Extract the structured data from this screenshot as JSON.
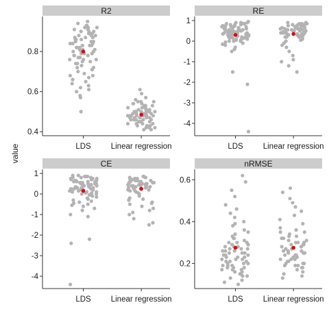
{
  "ylabel": "value",
  "colors": {
    "points": "#b3b3b3",
    "mean": "#e60000",
    "strip": "#cccccc"
  },
  "chart_data": [
    {
      "type": "scatter",
      "title": "R2",
      "ylim": [
        0.38,
        0.975
      ],
      "yticks": [
        0.4,
        0.6,
        0.8
      ],
      "categories": [
        "LDS",
        "Linear regression"
      ],
      "series": [
        {
          "category": "LDS",
          "mean": 0.8,
          "values": [
            0.95,
            0.94,
            0.93,
            0.92,
            0.92,
            0.91,
            0.91,
            0.9,
            0.9,
            0.89,
            0.89,
            0.88,
            0.88,
            0.87,
            0.87,
            0.86,
            0.86,
            0.85,
            0.85,
            0.84,
            0.84,
            0.83,
            0.83,
            0.82,
            0.82,
            0.81,
            0.81,
            0.8,
            0.8,
            0.79,
            0.79,
            0.78,
            0.78,
            0.77,
            0.77,
            0.76,
            0.76,
            0.75,
            0.75,
            0.74,
            0.73,
            0.72,
            0.71,
            0.7,
            0.69,
            0.68,
            0.67,
            0.66,
            0.65,
            0.64,
            0.63,
            0.62,
            0.61,
            0.6,
            0.58,
            0.57,
            0.5,
            0.88,
            0.86,
            0.84,
            0.82,
            0.8,
            0.78,
            0.76,
            0.74,
            0.72,
            0.9,
            0.85,
            0.83,
            0.81,
            0.79,
            0.87,
            0.93,
            0.89,
            0.68,
            0.92
          ]
        },
        {
          "category": "Linear regression",
          "mean": 0.485,
          "values": [
            0.61,
            0.59,
            0.57,
            0.56,
            0.55,
            0.55,
            0.54,
            0.54,
            0.53,
            0.53,
            0.52,
            0.52,
            0.52,
            0.51,
            0.51,
            0.51,
            0.5,
            0.5,
            0.5,
            0.5,
            0.49,
            0.49,
            0.49,
            0.49,
            0.48,
            0.48,
            0.48,
            0.48,
            0.47,
            0.47,
            0.47,
            0.47,
            0.46,
            0.46,
            0.46,
            0.45,
            0.45,
            0.45,
            0.44,
            0.44,
            0.43,
            0.43,
            0.42,
            0.42,
            0.41,
            0.41,
            0.5,
            0.48,
            0.46,
            0.52,
            0.49,
            0.47,
            0.51,
            0.45,
            0.53,
            0.44,
            0.5,
            0.48,
            0.46,
            0.54,
            0.42,
            0.47,
            0.49,
            0.51,
            0.43,
            0.55,
            0.5,
            0.48,
            0.46,
            0.44
          ]
        }
      ]
    },
    {
      "type": "scatter",
      "title": "RE",
      "ylim": [
        -4.6,
        1.2
      ],
      "yticks": [
        -4,
        -3,
        -2,
        -1,
        0,
        1
      ],
      "categories": [
        "LDS",
        "Linear regression"
      ],
      "series": [
        {
          "category": "LDS",
          "mean": 0.3,
          "values": [
            0.95,
            0.9,
            0.9,
            0.85,
            0.85,
            0.8,
            0.8,
            0.75,
            0.75,
            0.7,
            0.7,
            0.7,
            0.65,
            0.65,
            0.6,
            0.6,
            0.6,
            0.55,
            0.55,
            0.5,
            0.5,
            0.5,
            0.45,
            0.45,
            0.4,
            0.4,
            0.4,
            0.35,
            0.35,
            0.3,
            0.3,
            0.3,
            0.25,
            0.25,
            0.2,
            0.2,
            0.2,
            0.15,
            0.15,
            0.1,
            0.1,
            0.05,
            0.05,
            0.0,
            0.0,
            -0.05,
            -0.1,
            -0.15,
            -0.2,
            -0.3,
            -0.4,
            -0.5,
            0.8,
            0.6,
            0.4,
            0.2,
            0.0,
            0.7,
            0.5,
            0.3,
            0.1,
            0.9,
            0.65,
            0.45,
            0.25,
            0.55,
            0.35,
            0.15,
            -1.5,
            -2.1,
            -4.4,
            0.75,
            0.5,
            0.3,
            0.85,
            0.6
          ]
        },
        {
          "category": "Linear regression",
          "mean": 0.35,
          "values": [
            0.9,
            0.9,
            0.85,
            0.85,
            0.8,
            0.8,
            0.8,
            0.75,
            0.75,
            0.75,
            0.7,
            0.7,
            0.7,
            0.65,
            0.65,
            0.6,
            0.6,
            0.6,
            0.55,
            0.55,
            0.5,
            0.5,
            0.5,
            0.45,
            0.45,
            0.4,
            0.4,
            0.4,
            0.35,
            0.35,
            0.3,
            0.3,
            0.25,
            0.25,
            0.2,
            0.2,
            0.15,
            0.1,
            0.05,
            0.0,
            -0.1,
            -0.2,
            -0.3,
            -0.5,
            -0.7,
            -0.9,
            -1.0,
            -1.2,
            -1.5,
            0.8,
            0.6,
            0.4,
            0.2,
            0.7,
            0.5,
            0.3,
            0.65,
            0.45,
            0.85,
            0.55,
            0.35,
            0.75
          ]
        }
      ]
    },
    {
      "type": "scatter",
      "title": "CE",
      "ylim": [
        -4.6,
        1.2
      ],
      "yticks": [
        -4,
        -3,
        -2,
        -1,
        0,
        1
      ],
      "categories": [
        "LDS",
        "Linear regression"
      ],
      "series": [
        {
          "category": "LDS",
          "mean": 0.15,
          "values": [
            0.9,
            0.9,
            0.85,
            0.85,
            0.8,
            0.8,
            0.75,
            0.75,
            0.7,
            0.7,
            0.65,
            0.65,
            0.6,
            0.6,
            0.55,
            0.55,
            0.5,
            0.5,
            0.45,
            0.45,
            0.4,
            0.4,
            0.35,
            0.35,
            0.3,
            0.3,
            0.25,
            0.25,
            0.2,
            0.2,
            0.15,
            0.15,
            0.1,
            0.1,
            0.05,
            0.05,
            0.0,
            0.0,
            -0.05,
            -0.1,
            -0.15,
            -0.2,
            -0.25,
            -0.3,
            -0.35,
            -0.4,
            -0.5,
            -0.6,
            -0.7,
            -0.8,
            -1.0,
            -1.1,
            0.8,
            0.6,
            0.4,
            0.2,
            0.0,
            0.7,
            0.5,
            0.3,
            0.1,
            0.65,
            0.45,
            0.25,
            0.55,
            0.35,
            -2.2,
            -2.4,
            -4.4,
            0.75,
            0.5,
            0.3,
            0.85,
            0.6,
            -0.45,
            -0.55
          ]
        },
        {
          "category": "Linear regression",
          "mean": 0.25,
          "values": [
            0.85,
            0.85,
            0.8,
            0.8,
            0.75,
            0.75,
            0.7,
            0.7,
            0.7,
            0.65,
            0.65,
            0.6,
            0.6,
            0.55,
            0.55,
            0.5,
            0.5,
            0.45,
            0.45,
            0.4,
            0.4,
            0.35,
            0.35,
            0.3,
            0.3,
            0.25,
            0.25,
            0.2,
            0.2,
            0.15,
            0.1,
            0.05,
            0.0,
            -0.1,
            -0.2,
            -0.3,
            -0.4,
            -0.5,
            -0.6,
            -0.7,
            -0.8,
            -0.9,
            -1.0,
            -1.2,
            -1.4,
            -1.5,
            0.75,
            0.55,
            0.35,
            0.15,
            0.65,
            0.45,
            0.25,
            0.6,
            0.4,
            0.8,
            0.5,
            0.3,
            -0.25,
            -0.45
          ]
        }
      ]
    },
    {
      "type": "scatter",
      "title": "nRMSE",
      "ylim": [
        0.08,
        0.65
      ],
      "yticks": [
        0.2,
        0.4,
        0.6
      ],
      "categories": [
        "LDS",
        "Linear regression"
      ],
      "series": [
        {
          "category": "LDS",
          "mean": 0.275,
          "values": [
            0.62,
            0.59,
            0.55,
            0.52,
            0.48,
            0.46,
            0.44,
            0.42,
            0.4,
            0.39,
            0.38,
            0.36,
            0.35,
            0.34,
            0.33,
            0.32,
            0.31,
            0.3,
            0.3,
            0.29,
            0.29,
            0.28,
            0.28,
            0.27,
            0.27,
            0.26,
            0.26,
            0.25,
            0.25,
            0.24,
            0.24,
            0.23,
            0.23,
            0.22,
            0.22,
            0.21,
            0.21,
            0.2,
            0.2,
            0.19,
            0.19,
            0.18,
            0.18,
            0.17,
            0.17,
            0.16,
            0.16,
            0.15,
            0.15,
            0.14,
            0.14,
            0.13,
            0.12,
            0.11,
            0.1,
            0.3,
            0.28,
            0.26,
            0.24,
            0.22,
            0.2,
            0.18,
            0.32,
            0.25,
            0.23,
            0.19,
            0.27,
            0.21,
            0.17,
            0.29
          ]
        },
        {
          "category": "Linear regression",
          "mean": 0.275,
          "values": [
            0.56,
            0.54,
            0.51,
            0.49,
            0.47,
            0.45,
            0.43,
            0.41,
            0.39,
            0.37,
            0.36,
            0.35,
            0.34,
            0.33,
            0.32,
            0.32,
            0.31,
            0.31,
            0.3,
            0.3,
            0.29,
            0.29,
            0.28,
            0.28,
            0.27,
            0.27,
            0.26,
            0.26,
            0.25,
            0.25,
            0.24,
            0.24,
            0.23,
            0.23,
            0.22,
            0.22,
            0.21,
            0.21,
            0.2,
            0.2,
            0.19,
            0.19,
            0.18,
            0.18,
            0.17,
            0.16,
            0.15,
            0.14,
            0.13,
            0.3,
            0.28,
            0.26,
            0.24,
            0.22,
            0.2,
            0.33,
            0.27,
            0.25,
            0.21,
            0.35,
            0.19,
            0.29
          ]
        }
      ]
    }
  ]
}
